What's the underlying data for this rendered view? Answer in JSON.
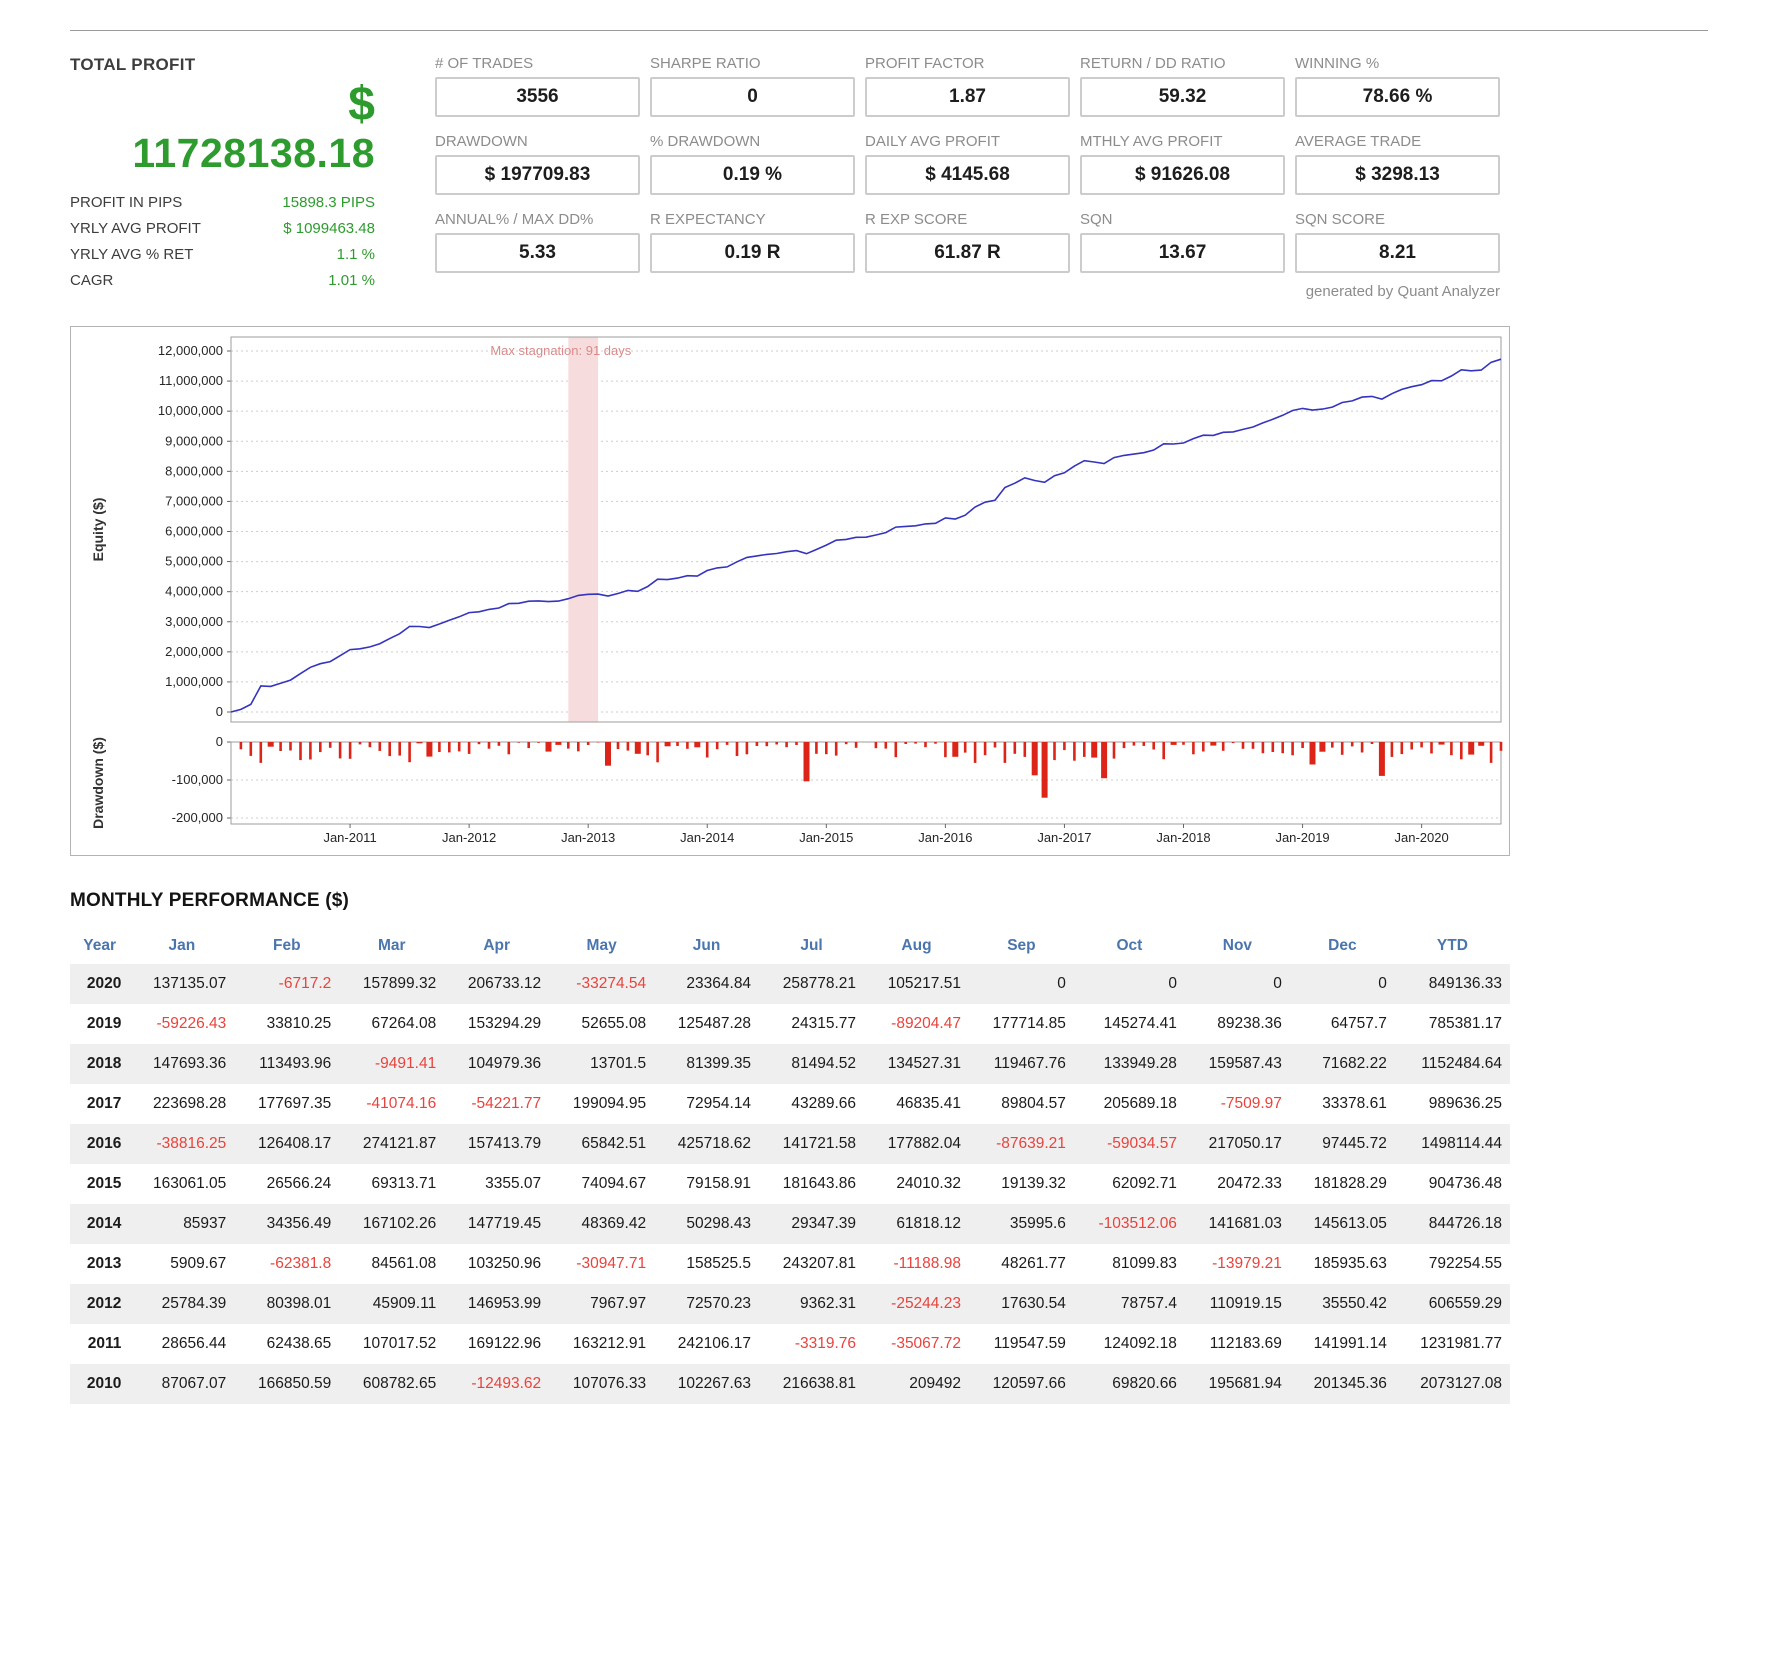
{
  "meta": {
    "generated_by": "generated by Quant Analyzer"
  },
  "colors": {
    "green": "#2e9b2e",
    "red": "#e8433c",
    "blue": "#4a76ad",
    "gray": "#8c8c8c"
  },
  "header": {
    "total": {
      "title": "TOTAL PROFIT",
      "currency": "$",
      "amount": "11728138.18",
      "rows": [
        {
          "label": "PROFIT IN PIPS",
          "value": "15898.3 PIPS"
        },
        {
          "label": "YRLY AVG PROFIT",
          "value": "$ 1099463.48"
        },
        {
          "label": "YRLY AVG % RET",
          "value": "1.1 %"
        },
        {
          "label": "CAGR",
          "value": "1.01 %"
        }
      ]
    },
    "stats": [
      {
        "label": "# OF TRADES",
        "value": "3556"
      },
      {
        "label": "SHARPE RATIO",
        "value": "0"
      },
      {
        "label": "PROFIT FACTOR",
        "value": "1.87"
      },
      {
        "label": "RETURN / DD RATIO",
        "value": "59.32"
      },
      {
        "label": "WINNING %",
        "value": "78.66 %"
      },
      {
        "label": "DRAWDOWN",
        "value": "$ 197709.83"
      },
      {
        "label": "% DRAWDOWN",
        "value": "0.19 %"
      },
      {
        "label": "DAILY AVG PROFIT",
        "value": "$ 4145.68"
      },
      {
        "label": "MTHLY AVG PROFIT",
        "value": "$ 91626.08"
      },
      {
        "label": "AVERAGE TRADE",
        "value": "$ 3298.13"
      },
      {
        "label": "ANNUAL% / MAX DD%",
        "value": "5.33"
      },
      {
        "label": "R EXPECTANCY",
        "value": "0.19 R"
      },
      {
        "label": "R EXP SCORE",
        "value": "61.87 R"
      },
      {
        "label": "SQN",
        "value": "13.67"
      },
      {
        "label": "SQN SCORE",
        "value": "8.21"
      }
    ]
  },
  "chart_data": [
    {
      "type": "line",
      "name": "equity-curve",
      "ylabel": "Equity ($)",
      "ylim": [
        0,
        12000000
      ],
      "y_ticks": [
        0,
        1000000,
        2000000,
        3000000,
        4000000,
        5000000,
        6000000,
        7000000,
        8000000,
        9000000,
        10000000,
        11000000,
        12000000
      ],
      "x_ticks": [
        "Jan-2011",
        "Jan-2012",
        "Jan-2013",
        "Jan-2014",
        "Jan-2015",
        "Jan-2016",
        "Jan-2017",
        "Jan-2018",
        "Jan-2019",
        "Jan-2020"
      ],
      "x_range": [
        "Jan-2010",
        "Aug-2020"
      ],
      "grid": "horizontal-dotted",
      "legend": "none",
      "line_color": "#3434bf",
      "annotation": {
        "text": "Max stagnation: 91 days",
        "start": "Nov-2012",
        "end": "Feb-2013",
        "band_color": "#f6dcdc",
        "text_color": "#d98b8b"
      },
      "series": {
        "name": "Equity",
        "derivation": "cumulative sum of monthly_performance month values, starting at 0 in Jan-2010, ending Aug-2020",
        "start_value": 0,
        "end_value": 11728138.18,
        "year_end_equity": {
          "2010": 2073127.08,
          "2011": 3305108.85,
          "2012": 3911668.14,
          "2013": 4703922.69,
          "2014": 5548648.87,
          "2015": 6453385.35,
          "2016": 7951499.79,
          "2017": 8941136.04,
          "2018": 10093620.68,
          "2019": 10879001.85,
          "2020": 11728138.18
        }
      }
    },
    {
      "type": "area",
      "name": "drawdown",
      "ylabel": "Drawdown ($)",
      "ylim": [
        -230000,
        0
      ],
      "y_ticks": [
        0,
        -100000,
        -200000
      ],
      "fill_color": "#dd2418",
      "series": {
        "derivation": "equity minus running maximum of equity",
        "max_drawdown": -197709.83
      }
    }
  ],
  "monthly": {
    "title": "MONTHLY PERFORMANCE ($)",
    "columns": [
      "Year",
      "Jan",
      "Feb",
      "Mar",
      "Apr",
      "May",
      "Jun",
      "Jul",
      "Aug",
      "Sep",
      "Oct",
      "Nov",
      "Dec",
      "YTD"
    ],
    "rows": [
      {
        "year": "2020",
        "values": [
          "137135.07",
          "-6717.2",
          "157899.32",
          "206733.12",
          "-33274.54",
          "23364.84",
          "258778.21",
          "105217.51",
          "0",
          "0",
          "0",
          "0"
        ],
        "ytd": "849136.33"
      },
      {
        "year": "2019",
        "values": [
          "-59226.43",
          "33810.25",
          "67264.08",
          "153294.29",
          "52655.08",
          "125487.28",
          "24315.77",
          "-89204.47",
          "177714.85",
          "145274.41",
          "89238.36",
          "64757.7"
        ],
        "ytd": "785381.17"
      },
      {
        "year": "2018",
        "values": [
          "147693.36",
          "113493.96",
          "-9491.41",
          "104979.36",
          "13701.5",
          "81399.35",
          "81494.52",
          "134527.31",
          "119467.76",
          "133949.28",
          "159587.43",
          "71682.22"
        ],
        "ytd": "1152484.64"
      },
      {
        "year": "2017",
        "values": [
          "223698.28",
          "177697.35",
          "-41074.16",
          "-54221.77",
          "199094.95",
          "72954.14",
          "43289.66",
          "46835.41",
          "89804.57",
          "205689.18",
          "-7509.97",
          "33378.61"
        ],
        "ytd": "989636.25"
      },
      {
        "year": "2016",
        "values": [
          "-38816.25",
          "126408.17",
          "274121.87",
          "157413.79",
          "65842.51",
          "425718.62",
          "141721.58",
          "177882.04",
          "-87639.21",
          "-59034.57",
          "217050.17",
          "97445.72"
        ],
        "ytd": "1498114.44"
      },
      {
        "year": "2015",
        "values": [
          "163061.05",
          "26566.24",
          "69313.71",
          "3355.07",
          "74094.67",
          "79158.91",
          "181643.86",
          "24010.32",
          "19139.32",
          "62092.71",
          "20472.33",
          "181828.29"
        ],
        "ytd": "904736.48"
      },
      {
        "year": "2014",
        "values": [
          "85937",
          "34356.49",
          "167102.26",
          "147719.45",
          "48369.42",
          "50298.43",
          "29347.39",
          "61818.12",
          "35995.6",
          "-103512.06",
          "141681.03",
          "145613.05"
        ],
        "ytd": "844726.18"
      },
      {
        "year": "2013",
        "values": [
          "5909.67",
          "-62381.8",
          "84561.08",
          "103250.96",
          "-30947.71",
          "158525.5",
          "243207.81",
          "-11188.98",
          "48261.77",
          "81099.83",
          "-13979.21",
          "185935.63"
        ],
        "ytd": "792254.55"
      },
      {
        "year": "2012",
        "values": [
          "25784.39",
          "80398.01",
          "45909.11",
          "146953.99",
          "7967.97",
          "72570.23",
          "9362.31",
          "-25244.23",
          "17630.54",
          "78757.4",
          "110919.15",
          "35550.42"
        ],
        "ytd": "606559.29"
      },
      {
        "year": "2011",
        "values": [
          "28656.44",
          "62438.65",
          "107017.52",
          "169122.96",
          "163212.91",
          "242106.17",
          "-3319.76",
          "-35067.72",
          "119547.59",
          "124092.18",
          "112183.69",
          "141991.14"
        ],
        "ytd": "1231981.77"
      },
      {
        "year": "2010",
        "values": [
          "87067.07",
          "166850.59",
          "608782.65",
          "-12493.62",
          "107076.33",
          "102267.63",
          "216638.81",
          "209492",
          "120597.66",
          "69820.66",
          "195681.94",
          "201345.36"
        ],
        "ytd": "2073127.08"
      }
    ]
  }
}
